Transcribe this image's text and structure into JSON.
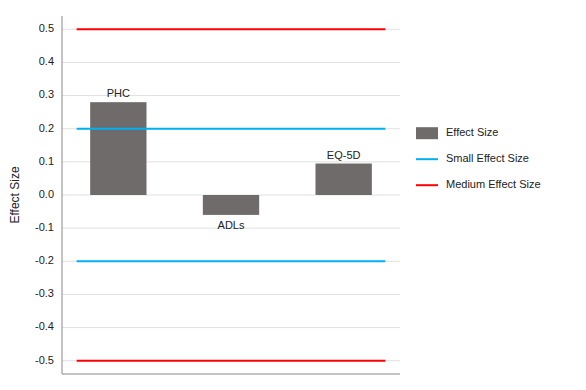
{
  "chart_data": {
    "type": "bar",
    "categories": [
      "PHC",
      "ADLs",
      "EQ-5D"
    ],
    "series": [
      {
        "name": "Effect Size",
        "type": "bar",
        "color": "#706b6b",
        "values": [
          0.28,
          -0.06,
          0.095
        ]
      }
    ],
    "reference_lines": [
      {
        "name": "Small Effect Size",
        "color": "#00b0f0",
        "values": [
          0.2,
          -0.2
        ]
      },
      {
        "name": "Medium Effect Size",
        "color": "#ff0000",
        "values": [
          0.5,
          -0.5
        ]
      }
    ],
    "ylabel": "Effect Size",
    "ylim": [
      -0.54,
      0.54
    ],
    "yticks": [
      -0.5,
      -0.4,
      -0.3,
      -0.2,
      -0.1,
      {
        "value": 0.0,
        "label": "0.0"
      },
      0.1,
      0.2,
      0.3,
      0.4,
      0.5
    ],
    "grid": true,
    "legend": "right",
    "tick_labels": "y"
  }
}
